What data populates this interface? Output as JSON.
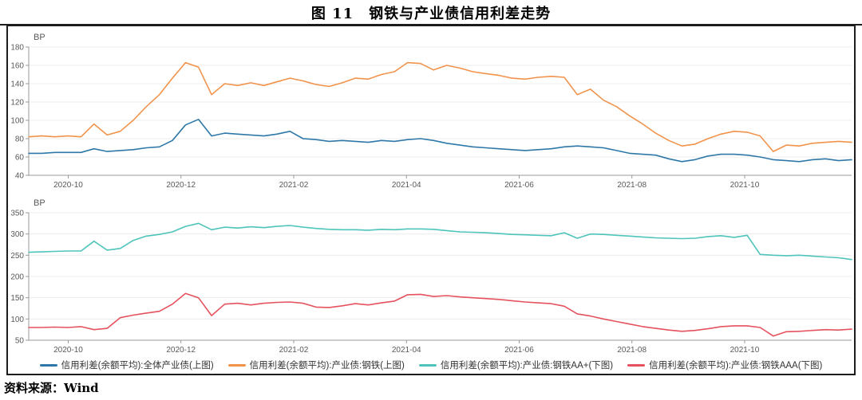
{
  "figure": {
    "title": "图 11　钢铁与产业债信用利差走势",
    "source": "资料来源：Wind"
  },
  "legend": [
    {
      "label": "信用利差(余额平均):全体产业债(上图)",
      "color": "#2e78a8"
    },
    {
      "label": "信用利差(余额平均):产业债:钢铁(上图)",
      "color": "#f2934c"
    },
    {
      "label": "信用利差(余额平均):产业债:钢铁AA+(下图)",
      "color": "#4ec4ba"
    },
    {
      "label": "信用利差(余额平均):产业债:钢铁AAA(下图)",
      "color": "#e5525e"
    }
  ],
  "chart_data": [
    {
      "type": "line",
      "panel": "上图",
      "unit": "BP",
      "ylim": [
        40,
        180
      ],
      "yticks": [
        40,
        60,
        80,
        100,
        120,
        140,
        160,
        180
      ],
      "grid": "horizontal-only",
      "legend_position": "bottom-shared",
      "x_tick_labels": [
        "2020-10",
        "2020-12",
        "2021-02",
        "2021-04",
        "2021-06",
        "2021-08",
        "2021-10"
      ],
      "x_tick_positions": [
        0.048,
        0.185,
        0.322,
        0.459,
        0.596,
        0.733,
        0.87
      ],
      "series": [
        {
          "name": "信用利差(余额平均):全体产业债(上图)",
          "color": "#2e78a8",
          "values": [
            64,
            64,
            65,
            65,
            65,
            69,
            66,
            67,
            68,
            70,
            71,
            78,
            95,
            101,
            83,
            86,
            85,
            84,
            83,
            85,
            88,
            80,
            79,
            77,
            78,
            77,
            76,
            78,
            77,
            79,
            80,
            78,
            75,
            73,
            71,
            70,
            69,
            68,
            67,
            68,
            69,
            71,
            72,
            71,
            70,
            67,
            64,
            63,
            62,
            58,
            55,
            57,
            61,
            63,
            63,
            62,
            60,
            57,
            56,
            55,
            57,
            58,
            56,
            57
          ]
        },
        {
          "name": "信用利差(余额平均):产业债:钢铁(上图)",
          "color": "#f2934c",
          "values": [
            82,
            83,
            82,
            83,
            82,
            96,
            84,
            88,
            100,
            115,
            128,
            146,
            163,
            158,
            128,
            140,
            138,
            141,
            138,
            142,
            146,
            143,
            139,
            137,
            141,
            146,
            145,
            150,
            153,
            163,
            162,
            155,
            160,
            157,
            153,
            151,
            149,
            146,
            145,
            147,
            148,
            147,
            128,
            134,
            122,
            115,
            105,
            96,
            86,
            78,
            72,
            74,
            80,
            85,
            88,
            87,
            83,
            66,
            73,
            72,
            75,
            76,
            77,
            76
          ]
        }
      ]
    },
    {
      "type": "line",
      "panel": "下图",
      "unit": "BP",
      "ylim": [
        50,
        350
      ],
      "yticks": [
        50,
        100,
        150,
        200,
        250,
        300,
        350
      ],
      "grid": "horizontal-only",
      "legend_position": "bottom-shared",
      "x_tick_labels": [
        "2020-10",
        "2020-12",
        "2021-02",
        "2021-04",
        "2021-06",
        "2021-08",
        "2021-10"
      ],
      "x_tick_positions": [
        0.048,
        0.185,
        0.322,
        0.459,
        0.596,
        0.733,
        0.87
      ],
      "series": [
        {
          "name": "信用利差(余额平均):产业债:钢铁AA+(下图)",
          "color": "#4ec4ba",
          "values": [
            257,
            258,
            259,
            260,
            260,
            283,
            262,
            266,
            285,
            295,
            299,
            305,
            318,
            325,
            310,
            316,
            314,
            317,
            315,
            318,
            320,
            316,
            313,
            311,
            310,
            310,
            309,
            311,
            310,
            312,
            312,
            311,
            308,
            305,
            304,
            303,
            301,
            299,
            298,
            297,
            296,
            303,
            290,
            300,
            299,
            297,
            295,
            293,
            291,
            290,
            289,
            290,
            294,
            296,
            292,
            297,
            252,
            250,
            249,
            250,
            248,
            246,
            244,
            240
          ]
        },
        {
          "name": "信用利差(余额平均):产业债:钢铁AAA(下图)",
          "color": "#e5525e",
          "values": [
            80,
            80,
            81,
            80,
            82,
            75,
            78,
            103,
            109,
            114,
            118,
            135,
            160,
            150,
            108,
            135,
            137,
            133,
            137,
            139,
            140,
            137,
            128,
            127,
            131,
            136,
            133,
            138,
            142,
            157,
            158,
            153,
            155,
            152,
            150,
            148,
            146,
            143,
            140,
            138,
            136,
            130,
            112,
            107,
            100,
            94,
            88,
            82,
            78,
            74,
            71,
            73,
            77,
            82,
            84,
            84,
            80,
            60,
            70,
            71,
            73,
            75,
            74,
            76
          ]
        }
      ]
    }
  ]
}
